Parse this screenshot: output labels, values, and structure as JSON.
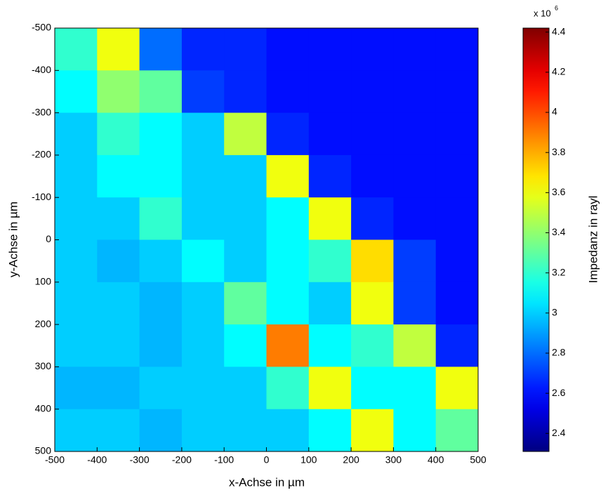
{
  "chart_data": {
    "type": "heatmap",
    "xlabel": "x-Achse in µm",
    "ylabel": "y-Achse in µm",
    "colorbar_label": "Impedanz in rayl",
    "colorbar_multiplier": {
      "base": "x 10",
      "exponent": "6"
    },
    "colormap": "jet",
    "x": [
      -450,
      -350,
      -250,
      -150,
      -50,
      50,
      150,
      250,
      350,
      450
    ],
    "y": [
      -450,
      -350,
      -250,
      -150,
      -50,
      50,
      150,
      250,
      350,
      450
    ],
    "z": [
      [
        3.2,
        3.6,
        2.8,
        2.65,
        2.65,
        2.6,
        2.6,
        2.6,
        2.6,
        2.6
      ],
      [
        3.1,
        3.4,
        3.3,
        2.7,
        2.65,
        2.6,
        2.6,
        2.6,
        2.6,
        2.6
      ],
      [
        3.0,
        3.2,
        3.1,
        3.0,
        3.5,
        2.65,
        2.6,
        2.6,
        2.6,
        2.6
      ],
      [
        3.0,
        3.1,
        3.1,
        3.0,
        3.0,
        3.6,
        2.65,
        2.6,
        2.6,
        2.6
      ],
      [
        3.0,
        3.0,
        3.2,
        3.0,
        3.0,
        3.1,
        3.6,
        2.65,
        2.6,
        2.6
      ],
      [
        3.0,
        2.95,
        3.0,
        3.1,
        3.0,
        3.1,
        3.2,
        3.7,
        2.7,
        2.6
      ],
      [
        3.0,
        3.0,
        2.95,
        3.0,
        3.3,
        3.1,
        3.0,
        3.6,
        2.7,
        2.6
      ],
      [
        3.0,
        3.0,
        2.95,
        3.0,
        3.1,
        3.9,
        3.1,
        3.2,
        3.5,
        2.65
      ],
      [
        2.95,
        2.95,
        3.0,
        3.0,
        3.0,
        3.2,
        3.6,
        3.1,
        3.1,
        3.6
      ],
      [
        3.0,
        3.0,
        2.95,
        3.0,
        3.0,
        3.0,
        3.1,
        3.6,
        3.1,
        3.3
      ]
    ],
    "xlim": [
      -500,
      500
    ],
    "ylim": [
      -500,
      500
    ],
    "y_reversed": true,
    "xticks": [
      -500,
      -400,
      -300,
      -200,
      -100,
      0,
      100,
      200,
      300,
      400,
      500
    ],
    "yticks": [
      -500,
      -400,
      -300,
      -200,
      -100,
      0,
      100,
      200,
      300,
      400,
      500
    ],
    "clim": [
      2.31,
      4.42
    ],
    "cticks": [
      2.4,
      2.6,
      2.8,
      3,
      3.2,
      3.4,
      3.6,
      3.8,
      4,
      4.2,
      4.4
    ]
  }
}
